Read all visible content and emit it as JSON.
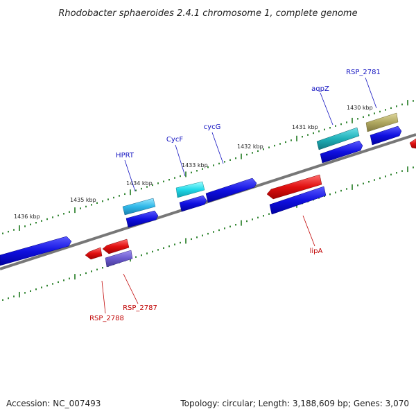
{
  "title": "Rhodobacter sphaeroides 2.4.1 chromosome 1, complete genome",
  "footer": {
    "accession": "Accession: NC_007493",
    "topology": "Topology: circular; Length: 3,188,609 bp; Genes: 3,070"
  },
  "colors": {
    "backbone": "#808080",
    "tick": "#1f7a1f",
    "blue": "#1010e0",
    "red": "#e01010",
    "cyan": "#20c8d8",
    "teal": "#20b0b8",
    "olive": "#b0a860",
    "purple": "#6a5acd",
    "label_blue": "#1010c0",
    "label_red": "#c00000"
  },
  "kbp_labels": [
    {
      "text": "1430 kbp"
    },
    {
      "text": "1431 kbp"
    },
    {
      "text": "1432 kbp"
    },
    {
      "text": "1433 kbp"
    },
    {
      "text": "1434 kbp"
    },
    {
      "text": "1435 kbp"
    },
    {
      "text": "1436 kbp"
    }
  ],
  "gene_labels": [
    {
      "text": "RSP_2781",
      "color": "label_blue"
    },
    {
      "text": "aqpZ",
      "color": "label_blue"
    },
    {
      "text": "cycG",
      "color": "label_blue"
    },
    {
      "text": "CycF",
      "color": "label_blue"
    },
    {
      "text": "HPRT",
      "color": "label_blue"
    },
    {
      "text": "lipA",
      "color": "label_red"
    },
    {
      "text": "RSP_2787",
      "color": "label_red"
    },
    {
      "text": "RSP_2788",
      "color": "label_red"
    }
  ]
}
